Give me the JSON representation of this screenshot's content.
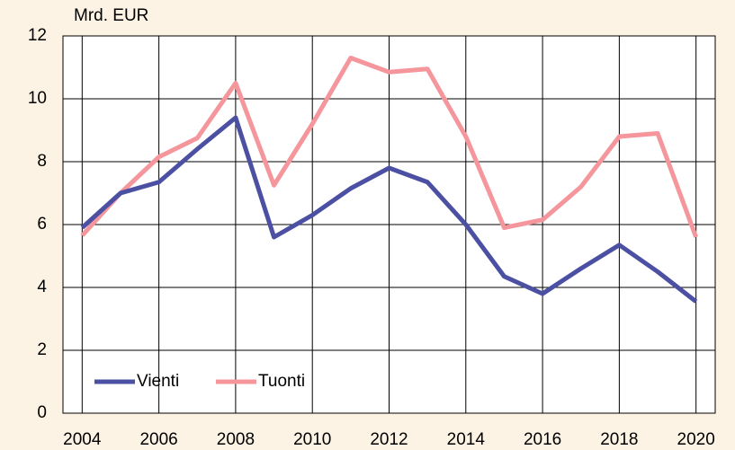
{
  "chart_data": {
    "type": "line",
    "y_label": "Mrd. EUR",
    "x": [
      2004,
      2005,
      2006,
      2007,
      2008,
      2009,
      2010,
      2011,
      2012,
      2013,
      2014,
      2015,
      2016,
      2017,
      2018,
      2019,
      2020
    ],
    "series": [
      {
        "name": "Vienti",
        "color": "#4b50a3",
        "values": [
          5.9,
          7.0,
          7.35,
          8.4,
          9.4,
          5.6,
          6.3,
          7.15,
          7.8,
          7.35,
          6.0,
          4.35,
          3.8,
          4.6,
          5.35,
          4.5,
          3.55
        ]
      },
      {
        "name": "Tuonti",
        "color": "#f4969b",
        "values": [
          5.65,
          7.0,
          8.15,
          8.75,
          10.5,
          7.25,
          9.2,
          11.3,
          10.85,
          10.95,
          8.8,
          5.9,
          6.15,
          7.2,
          8.8,
          8.9,
          5.6
        ]
      }
    ],
    "xlim": [
      2003.5,
      2020.5
    ],
    "xticks": [
      2004,
      2006,
      2008,
      2010,
      2012,
      2014,
      2016,
      2018,
      2020
    ],
    "ylim": [
      0,
      12
    ],
    "yticks": [
      0,
      2,
      4,
      6,
      8,
      10,
      12
    ],
    "grid": true,
    "legend": "lower left"
  }
}
